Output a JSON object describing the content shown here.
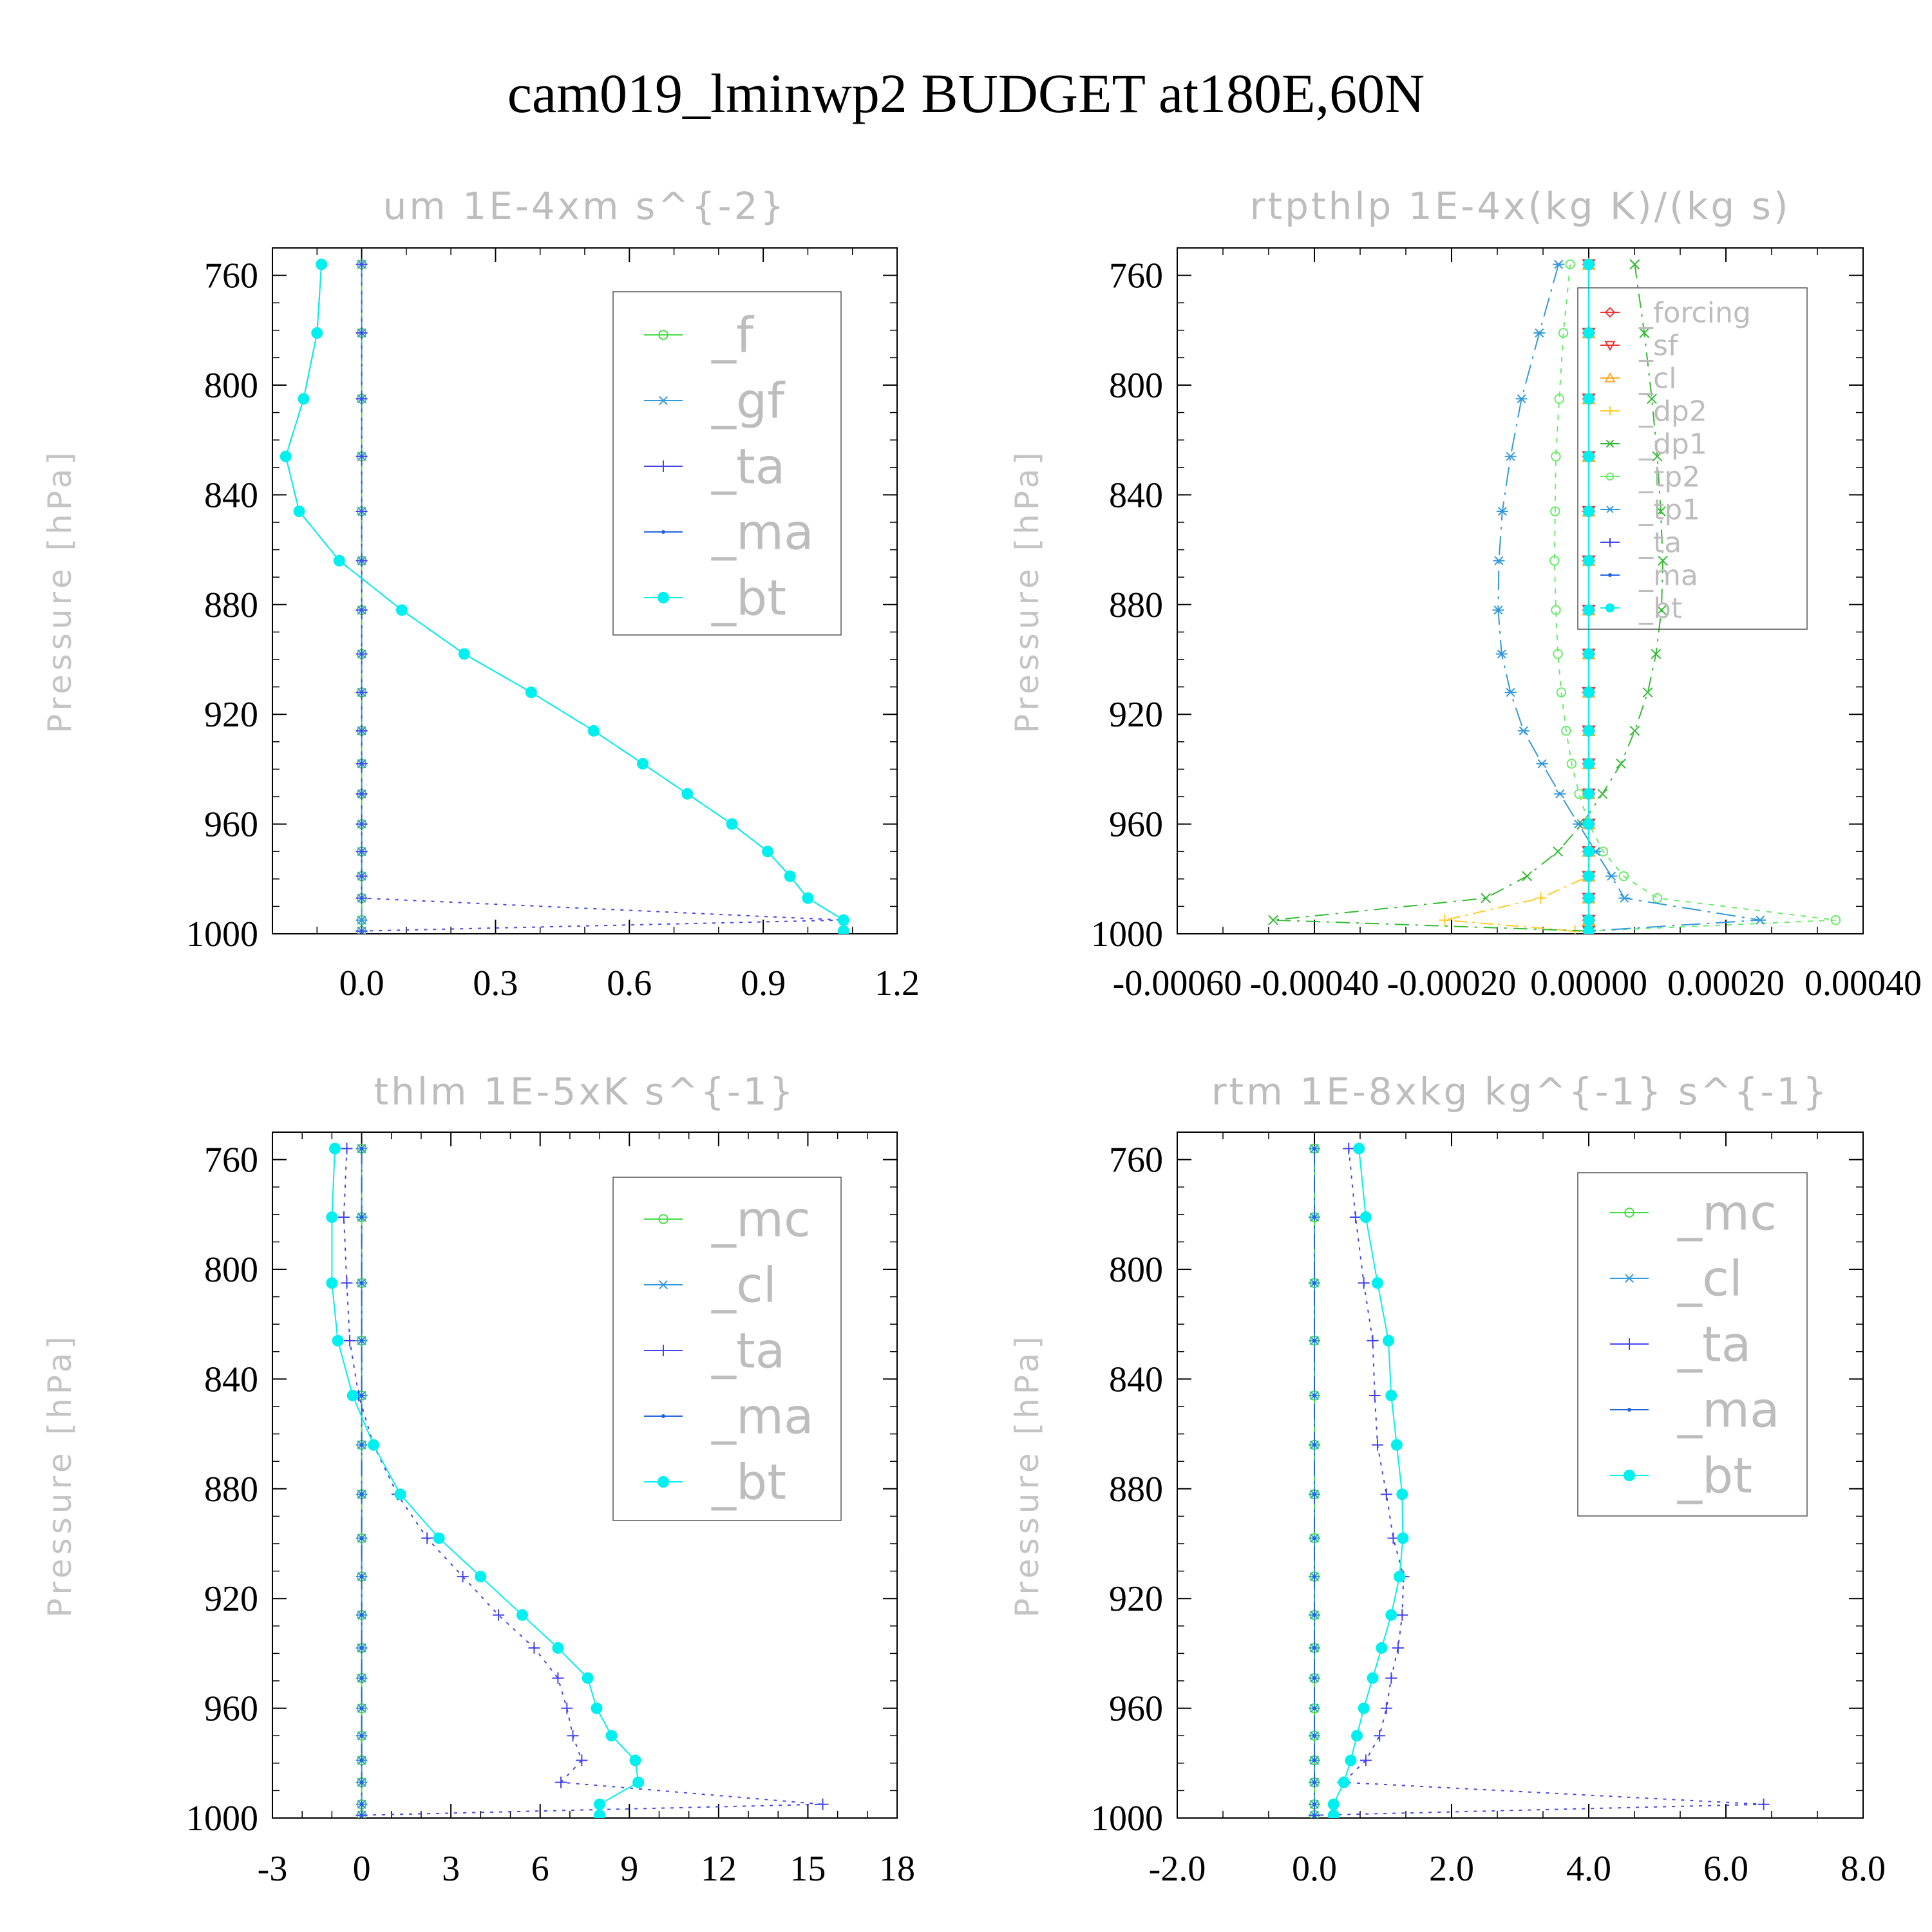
{
  "title": "cam019_lminwp2  BUDGET at180E,60N",
  "chart_data": [
    {
      "type": "line",
      "title": "um  1E-4xm s^{-2}",
      "ylabel": "Pressure [hPa]",
      "ylim": [
        1000,
        750
      ],
      "xlim": [
        -0.2,
        1.2
      ],
      "xticks": [
        "0.0",
        "0.3",
        "0.6",
        "0.9",
        "1.2"
      ],
      "xtick_values": [
        0,
        0.3,
        0.6,
        0.9,
        1.2
      ],
      "yticks": [
        "760",
        "800",
        "840",
        "880",
        "920",
        "960",
        "1000"
      ],
      "ytick_values": [
        760,
        800,
        840,
        880,
        920,
        960,
        1000
      ],
      "pressure": [
        756,
        781,
        805,
        826,
        846,
        864,
        882,
        898,
        912,
        926,
        938,
        949,
        960,
        970,
        979,
        987,
        995,
        999
      ],
      "series": [
        {
          "name": "_f",
          "color": "#44dd44",
          "marker": "circle",
          "values": [
            0,
            0,
            0,
            0,
            0,
            0,
            0,
            0,
            0,
            0,
            0,
            0,
            0,
            0,
            0,
            0,
            0,
            0
          ]
        },
        {
          "name": "_gf",
          "color": "#3399dd",
          "marker": "asterisk",
          "values": [
            0,
            0,
            0,
            0,
            0,
            0,
            0,
            0,
            0,
            0,
            0,
            0,
            0,
            0,
            0,
            0,
            0,
            0
          ]
        },
        {
          "name": "_ta",
          "color": "#4444ee",
          "marker": "plus",
          "values": [
            0,
            0,
            0,
            0,
            0,
            0,
            0,
            0,
            0,
            0,
            0,
            0,
            0,
            0,
            0,
            0,
            1.08,
            0
          ]
        },
        {
          "name": "_ma",
          "color": "#2266dd",
          "marker": "dot",
          "values": [
            -0.09,
            -0.1,
            -0.13,
            -0.17,
            -0.14,
            -0.05,
            0.09,
            0.23,
            0.38,
            0.52,
            0.63,
            0.73,
            0.83,
            0.91,
            0.96,
            1.0,
            1.08,
            1.08
          ]
        },
        {
          "name": "_bt",
          "color": "#00f0f0",
          "marker": "filled",
          "values": [
            -0.09,
            -0.1,
            -0.13,
            -0.17,
            -0.14,
            -0.05,
            0.09,
            0.23,
            0.38,
            0.52,
            0.63,
            0.73,
            0.83,
            0.91,
            0.96,
            1.0,
            1.08,
            1.08
          ]
        }
      ]
    },
    {
      "type": "line",
      "title": "rtpthlp  1E-4x(kg K)/(kg s)",
      "ylabel": "Pressure [hPa]",
      "ylim": [
        1000,
        750
      ],
      "xlim": [
        -0.0006,
        0.0004
      ],
      "xticks": [
        "-0.00060",
        "-0.00040",
        "-0.00020",
        "0.00000",
        "0.00020",
        "0.00040"
      ],
      "xtick_values": [
        -0.0006,
        -0.0004,
        -0.0002,
        0,
        0.0002,
        0.0004
      ],
      "yticks": [
        "760",
        "800",
        "840",
        "880",
        "920",
        "960",
        "1000"
      ],
      "ytick_values": [
        760,
        800,
        840,
        880,
        920,
        960,
        1000
      ],
      "pressure": [
        756,
        781,
        805,
        826,
        846,
        864,
        882,
        898,
        912,
        926,
        938,
        949,
        960,
        970,
        979,
        987,
        995,
        999
      ],
      "series": [
        {
          "name": "_forcing",
          "color": "#ee3333",
          "marker": "diamond",
          "values": [
            0,
            0,
            0,
            0,
            0,
            0,
            0,
            0,
            0,
            0,
            0,
            0,
            0,
            0,
            0,
            0,
            0,
            0
          ]
        },
        {
          "name": "_sf",
          "color": "#ee3333",
          "marker": "triangle-down",
          "values": [
            0,
            0,
            0,
            0,
            0,
            0,
            0,
            0,
            0,
            0,
            0,
            0,
            0,
            0,
            0,
            0,
            0,
            0
          ]
        },
        {
          "name": "_cl",
          "color": "#ffaa22",
          "marker": "triangle",
          "values": [
            0,
            0,
            0,
            0,
            0,
            0,
            0,
            0,
            0,
            0,
            0,
            0,
            0,
            0,
            0,
            0,
            0,
            0
          ]
        },
        {
          "name": "_dp2",
          "color": "#ffcc22",
          "marker": "plus",
          "values": [
            0,
            0,
            0,
            0,
            0,
            0,
            0,
            0,
            0,
            0,
            0,
            0,
            0,
            0,
            0,
            -7e-05,
            -0.00021,
            -2e-05
          ]
        },
        {
          "name": "_dp1",
          "color": "#33bb33",
          "marker": "cross",
          "values": [
            6.7e-05,
            8.1e-05,
            9.2e-05,
            0.0001,
            0.000105,
            0.000108,
            0.000106,
            9.8e-05,
            8.6e-05,
            6.7e-05,
            4.7e-05,
            2e-05,
            -1e-05,
            -4.5e-05,
            -9e-05,
            -0.00015,
            -0.00046,
            0
          ]
        },
        {
          "name": "_tp2",
          "color": "#66ee66",
          "marker": "circle",
          "values": [
            -2.7e-05,
            -3.7e-05,
            -4.3e-05,
            -4.8e-05,
            -4.9e-05,
            -5e-05,
            -4.8e-05,
            -4.5e-05,
            -4e-05,
            -3.3e-05,
            -2.5e-05,
            -1.4e-05,
            0,
            2.1e-05,
            5.1e-05,
            0.0001,
            0.00036,
            0
          ]
        },
        {
          "name": "_tp1",
          "color": "#3399dd",
          "marker": "asterisk",
          "values": [
            -4.4e-05,
            -7.2e-05,
            -9.8e-05,
            -0.000114,
            -0.000126,
            -0.000131,
            -0.000132,
            -0.000127,
            -0.000114,
            -9.5e-05,
            -6.8e-05,
            -4.2e-05,
            -1.5e-05,
            1e-05,
            3.3e-05,
            5.2e-05,
            0.00025,
            0
          ]
        },
        {
          "name": "_ta",
          "color": "#4444ee",
          "marker": "plus",
          "values": [
            0,
            0,
            0,
            0,
            0,
            0,
            0,
            0,
            0,
            0,
            0,
            0,
            0,
            0,
            0,
            0,
            0,
            0
          ]
        },
        {
          "name": "_ma",
          "color": "#2266dd",
          "marker": "dot",
          "values": [
            0,
            0,
            0,
            0,
            0,
            0,
            0,
            0,
            0,
            0,
            0,
            0,
            0,
            0,
            0,
            0,
            0,
            0
          ]
        },
        {
          "name": "_bt",
          "color": "#00f0f0",
          "marker": "filled",
          "values": [
            0,
            0,
            0,
            0,
            0,
            0,
            0,
            0,
            0,
            0,
            0,
            0,
            0,
            0,
            0,
            0,
            0,
            0
          ]
        }
      ]
    },
    {
      "type": "line",
      "title": "thlm  1E-5xK s^{-1}",
      "ylabel": "Pressure [hPa]",
      "ylim": [
        1000,
        750
      ],
      "xlim": [
        -3,
        18
      ],
      "xticks": [
        "-3",
        "0",
        "3",
        "6",
        "9",
        "12",
        "15",
        "18"
      ],
      "xtick_values": [
        -3,
        0,
        3,
        6,
        9,
        12,
        15,
        18
      ],
      "yticks": [
        "760",
        "800",
        "840",
        "880",
        "920",
        "960",
        "1000"
      ],
      "ytick_values": [
        760,
        800,
        840,
        880,
        920,
        960,
        1000
      ],
      "pressure": [
        756,
        781,
        805,
        826,
        846,
        864,
        882,
        898,
        912,
        926,
        938,
        949,
        960,
        970,
        979,
        987,
        995,
        999
      ],
      "series": [
        {
          "name": "_mc",
          "color": "#44dd44",
          "marker": "circle",
          "values": [
            0,
            0,
            0,
            0,
            0,
            0,
            0,
            0,
            0,
            0,
            0,
            0,
            0,
            0,
            0,
            0,
            0,
            0
          ]
        },
        {
          "name": "_cl",
          "color": "#3399dd",
          "marker": "asterisk",
          "values": [
            0,
            0,
            0,
            0,
            0,
            0,
            0,
            0,
            0,
            0,
            0,
            0,
            0,
            0,
            0,
            0,
            0,
            0
          ]
        },
        {
          "name": "_ta",
          "color": "#4444ee",
          "marker": "plus",
          "values": [
            -0.5,
            -0.6,
            -0.5,
            -0.4,
            -0.1,
            0.4,
            1.2,
            2.2,
            3.4,
            4.6,
            5.8,
            6.6,
            6.9,
            7.1,
            7.4,
            6.7,
            15.5,
            0
          ]
        },
        {
          "name": "_ma",
          "color": "#2266dd",
          "marker": "dot",
          "values": [
            0,
            0,
            0,
            0,
            0,
            0,
            0,
            0,
            0,
            0,
            0,
            0,
            0,
            0,
            0,
            0,
            0,
            0
          ]
        },
        {
          "name": "_bt",
          "color": "#00f0f0",
          "marker": "filled",
          "values": [
            -0.9,
            -1.0,
            -1.0,
            -0.8,
            -0.3,
            0.4,
            1.3,
            2.6,
            4.0,
            5.4,
            6.6,
            7.6,
            7.9,
            8.4,
            9.2,
            9.3,
            8.0,
            8.0
          ]
        }
      ]
    },
    {
      "type": "line",
      "title": "rtm  1E-8xkg kg^{-1} s^{-1}",
      "ylabel": "Pressure [hPa]",
      "ylim": [
        1000,
        750
      ],
      "xlim": [
        -2.0,
        8.0
      ],
      "xticks": [
        "-2.0",
        "0.0",
        "2.0",
        "4.0",
        "6.0",
        "8.0"
      ],
      "xtick_values": [
        -2,
        0,
        2,
        4,
        6,
        8
      ],
      "yticks": [
        "760",
        "800",
        "840",
        "880",
        "920",
        "960",
        "1000"
      ],
      "ytick_values": [
        760,
        800,
        840,
        880,
        920,
        960,
        1000
      ],
      "pressure": [
        756,
        781,
        805,
        826,
        846,
        864,
        882,
        898,
        912,
        926,
        938,
        949,
        960,
        970,
        979,
        987,
        995,
        999
      ],
      "series": [
        {
          "name": "_mc",
          "color": "#44dd44",
          "marker": "circle",
          "values": [
            0,
            0,
            0,
            0,
            0,
            0,
            0,
            0,
            0,
            0,
            0,
            0,
            0,
            0,
            0,
            0,
            0,
            0
          ]
        },
        {
          "name": "_cl",
          "color": "#3399dd",
          "marker": "asterisk",
          "values": [
            0,
            0,
            0,
            0,
            0,
            0,
            0,
            0,
            0,
            0,
            0,
            0,
            0,
            0,
            0,
            0,
            0,
            0
          ]
        },
        {
          "name": "_ta",
          "color": "#4444ee",
          "marker": "plus",
          "values": [
            0.5,
            0.6,
            0.72,
            0.85,
            0.88,
            0.92,
            1.05,
            1.15,
            1.3,
            1.28,
            1.22,
            1.12,
            1.05,
            0.95,
            0.75,
            0.42,
            6.55,
            0
          ]
        },
        {
          "name": "_ma",
          "color": "#2266dd",
          "marker": "dot",
          "values": [
            0,
            0,
            0,
            0,
            0,
            0,
            0,
            0,
            0,
            0,
            0,
            0,
            0,
            0,
            0,
            0,
            0,
            0
          ]
        },
        {
          "name": "_bt",
          "color": "#00f0f0",
          "marker": "filled",
          "values": [
            0.65,
            0.75,
            0.92,
            1.08,
            1.12,
            1.2,
            1.28,
            1.29,
            1.24,
            1.12,
            0.98,
            0.85,
            0.72,
            0.62,
            0.53,
            0.43,
            0.28,
            0.28
          ]
        }
      ]
    }
  ]
}
